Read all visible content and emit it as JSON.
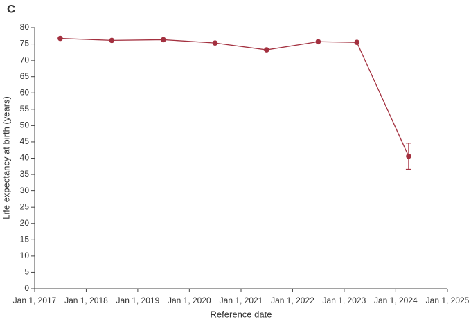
{
  "chart_data": {
    "type": "line",
    "panel_label": "C",
    "ylabel": "Life expectancy at birth (years)",
    "xlabel": "Reference date",
    "x": [
      "2017-07-01",
      "2018-07-01",
      "2019-07-01",
      "2020-07-01",
      "2021-07-01",
      "2022-07-01",
      "2023-04-01",
      "2024-04-01"
    ],
    "series": [
      {
        "color": "#a3303f",
        "values": [
          76.7,
          76.1,
          76.3,
          75.3,
          73.2,
          75.7,
          75.5,
          40.6
        ],
        "errors": [
          null,
          null,
          null,
          null,
          null,
          null,
          null,
          4
        ]
      }
    ],
    "xlim": [
      "2017-01-01",
      "2025-01-01"
    ],
    "xticks": [
      {
        "value": "2017-01-01",
        "label": "Jan 1, 2017"
      },
      {
        "value": "2018-01-01",
        "label": "Jan 1, 2018"
      },
      {
        "value": "2019-01-01",
        "label": "Jan 1, 2019"
      },
      {
        "value": "2020-01-01",
        "label": "Jan 1, 2020"
      },
      {
        "value": "2021-01-01",
        "label": "Jan 1, 2021"
      },
      {
        "value": "2022-01-01",
        "label": "Jan 1, 2022"
      },
      {
        "value": "2023-01-01",
        "label": "Jan 1, 2023"
      },
      {
        "value": "2024-01-01",
        "label": "Jan 1, 2024"
      },
      {
        "value": "2025-01-01",
        "label": "Jan 1, 2025"
      }
    ],
    "ylim": [
      0,
      80
    ],
    "yticks": [
      0,
      5,
      10,
      15,
      20,
      25,
      30,
      35,
      40,
      45,
      50,
      55,
      60,
      65,
      70,
      75,
      80
    ],
    "grid": false
  }
}
